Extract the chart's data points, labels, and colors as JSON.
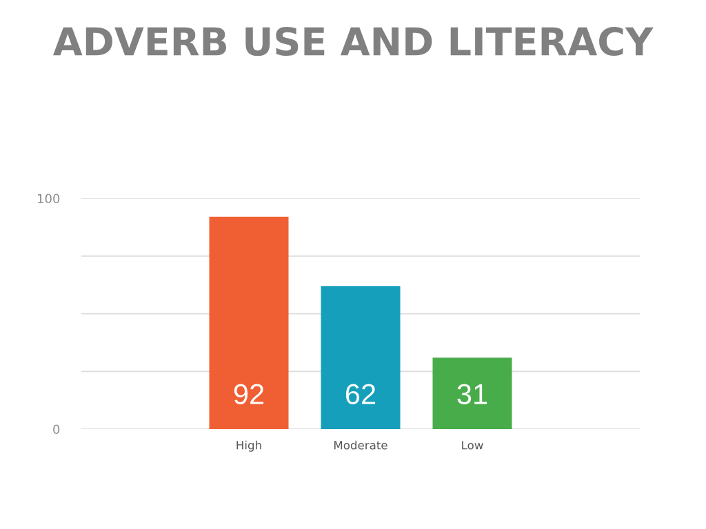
{
  "chart_data": {
    "type": "bar",
    "title": "ADVERB USE AND LITERACY",
    "categories": [
      null,
      "High",
      "Moderate",
      "Low",
      null
    ],
    "values": [
      null,
      92,
      62,
      31,
      null
    ],
    "colors": [
      "#f05f33",
      "#f05f33",
      "#169fbb",
      "#49ac4b",
      "#49ac4b"
    ],
    "ylim": [
      0,
      100
    ],
    "yticks": [
      0,
      {
        "value": 25,
        "label": null
      },
      {
        "value": 50,
        "label": null
      },
      {
        "value": 75,
        "label": null
      },
      100
    ],
    "grid": "y",
    "data_labels": true
  }
}
